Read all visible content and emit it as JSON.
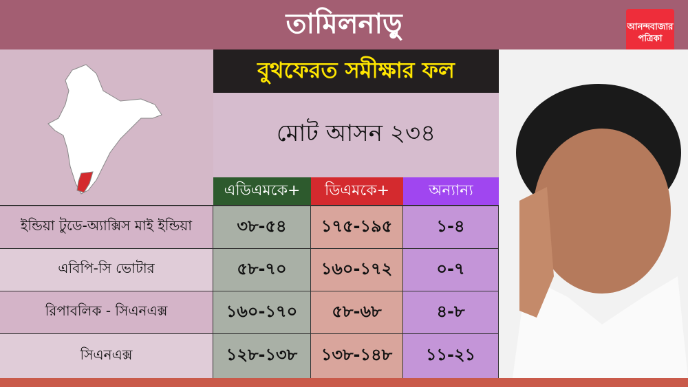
{
  "header": {
    "title": "তামিলনাড়ু",
    "logo": [
      "আনন্দবাজার",
      "পত্রিকা"
    ]
  },
  "subtitle": "বুথফেরত সমীক্ষার ফল",
  "total_seats": "মোট আসন ২৩৪",
  "columns": [
    {
      "label": "এডিএমকে+",
      "color": "#2d5a2d"
    },
    {
      "label": "ডিএমকে+",
      "color": "#d42a2e"
    },
    {
      "label": "অন্যান্য",
      "color": "#a046f0"
    }
  ],
  "rows": [
    {
      "pollster": "ইন্ডিয়া টুডে-অ্যাক্সিস মাই ইন্ডিয়া",
      "values": [
        "৩৮-৫৪",
        "১৭৫-১৯৫",
        "১-৪"
      ]
    },
    {
      "pollster": "এবিপি-সি ভোটার",
      "values": [
        "৫৮-৭০",
        "১৬০-১৭২",
        "০-৭"
      ]
    },
    {
      "pollster": "রিপাবলিক - সিএনএক্স",
      "values": [
        "১৬০-১৭০",
        "৫৮-৬৮",
        "৪-৮"
      ]
    },
    {
      "pollster": "সিএনএক্স",
      "values": [
        "১২৮-১৩৮",
        "১৩৮-১৪৮",
        "১১-২১"
      ]
    }
  ],
  "colors": {
    "header": "#a35e72",
    "highlight_state": "#d42a2e",
    "bottom_bar": "#c95a4a"
  }
}
